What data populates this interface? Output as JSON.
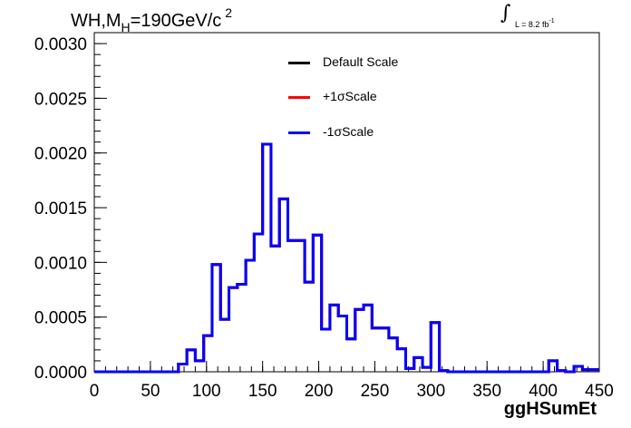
{
  "header": {
    "title_main": "WH,M",
    "title_sub": "H",
    "title_tail": "=190GeV/c",
    "title_sup": "2"
  },
  "luminosity": {
    "integral_symbol": "∫",
    "text": "L = 8.2 fb",
    "sup": "-1"
  },
  "legend": [
    {
      "label": "Default Scale",
      "color": "#000000"
    },
    {
      "label": "+1σScale",
      "color": "#ff0000"
    },
    {
      "label": "-1σScale",
      "color": "#0000ff"
    }
  ],
  "chart_data": {
    "type": "histogram",
    "title": "WH,M_H=190GeV/c^2",
    "xlabel": "ggHSumEt",
    "ylabel": "",
    "xlim": [
      0,
      450
    ],
    "ylim": [
      0,
      0.0031
    ],
    "x_ticks": [
      0,
      50,
      100,
      150,
      200,
      250,
      300,
      350,
      400,
      450
    ],
    "y_ticks": [
      0.0,
      0.0005,
      0.001,
      0.0015,
      0.002,
      0.0025,
      0.003
    ],
    "y_tick_labels": [
      "0.0000",
      "0.0005",
      "0.0010",
      "0.0015",
      "0.0020",
      "0.0025",
      "0.0030"
    ],
    "bin_width": 7.5,
    "bin_start": 0,
    "values": [
      0,
      0,
      0,
      0,
      0,
      0,
      0,
      0,
      0,
      0,
      7e-05,
      0.0002,
      0.0001,
      0.00033,
      0.00098,
      0.00048,
      0.00077,
      0.0008,
      0.00102,
      0.00126,
      0.00208,
      0.00115,
      0.00158,
      0.0012,
      0.0012,
      0.00082,
      0.00125,
      0.00039,
      0.00061,
      0.00051,
      0.0003,
      0.00057,
      0.00061,
      0.0004,
      0.0004,
      0.00031,
      0.00021,
      3e-05,
      0.00013,
      4e-05,
      0.00045,
      1e-05,
      0,
      0,
      0,
      0,
      0,
      0,
      0,
      0,
      0,
      0,
      0,
      0,
      0.0001,
      1e-05,
      0,
      5e-05,
      2e-05,
      2e-05
    ],
    "series": [
      {
        "name": "Default Scale",
        "color": "#000000"
      },
      {
        "name": "+1σScale",
        "color": "#ff0000"
      },
      {
        "name": "-1σScale",
        "color": "#0000ff"
      }
    ],
    "grid": false,
    "legend_position": "top-center"
  }
}
